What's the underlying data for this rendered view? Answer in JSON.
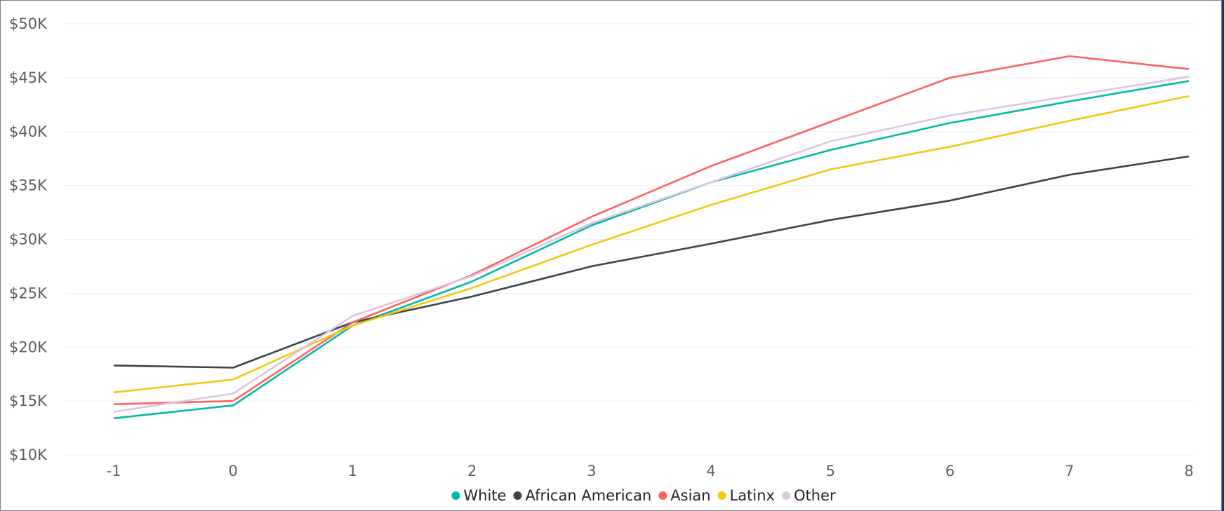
{
  "chart_data": {
    "type": "line",
    "title": "",
    "xlabel": "",
    "ylabel": "",
    "x": [
      -1,
      0,
      1,
      2,
      3,
      4,
      5,
      6,
      7,
      8
    ],
    "ylim": [
      10000,
      50000
    ],
    "y_ticks": [
      10000,
      15000,
      20000,
      25000,
      30000,
      35000,
      40000,
      45000,
      50000
    ],
    "y_tick_labels": [
      "$10K",
      "$15K",
      "$20K",
      "$25K",
      "$30K",
      "$35K",
      "$40K",
      "$45K",
      "$50K"
    ],
    "x_tick_labels": [
      "-1",
      "0",
      "1",
      "2",
      "3",
      "4",
      "5",
      "6",
      "7",
      "8"
    ],
    "grid": true,
    "legend_position": "bottom-center",
    "series": [
      {
        "name": "White",
        "color": "#01b8aa",
        "values": [
          13400,
          14600,
          22000,
          26100,
          31300,
          35300,
          38300,
          40800,
          42800,
          44700
        ]
      },
      {
        "name": "African American",
        "color": "#374649",
        "values": [
          18300,
          18100,
          22300,
          24700,
          27500,
          29600,
          31800,
          33600,
          36000,
          37700
        ]
      },
      {
        "name": "Asian",
        "color": "#fd625e",
        "values": [
          14700,
          15000,
          22300,
          26700,
          32100,
          36800,
          40900,
          45000,
          47000,
          45800
        ]
      },
      {
        "name": "Latinx",
        "color": "#f2c80f",
        "values": [
          15800,
          17000,
          22000,
          25500,
          29500,
          33200,
          36500,
          38600,
          41000,
          43300
        ]
      },
      {
        "name": "Other",
        "color": "#dcc5e1",
        "values": [
          14000,
          15700,
          22900,
          26600,
          31500,
          35300,
          39100,
          41500,
          43300,
          45100
        ]
      }
    ]
  }
}
